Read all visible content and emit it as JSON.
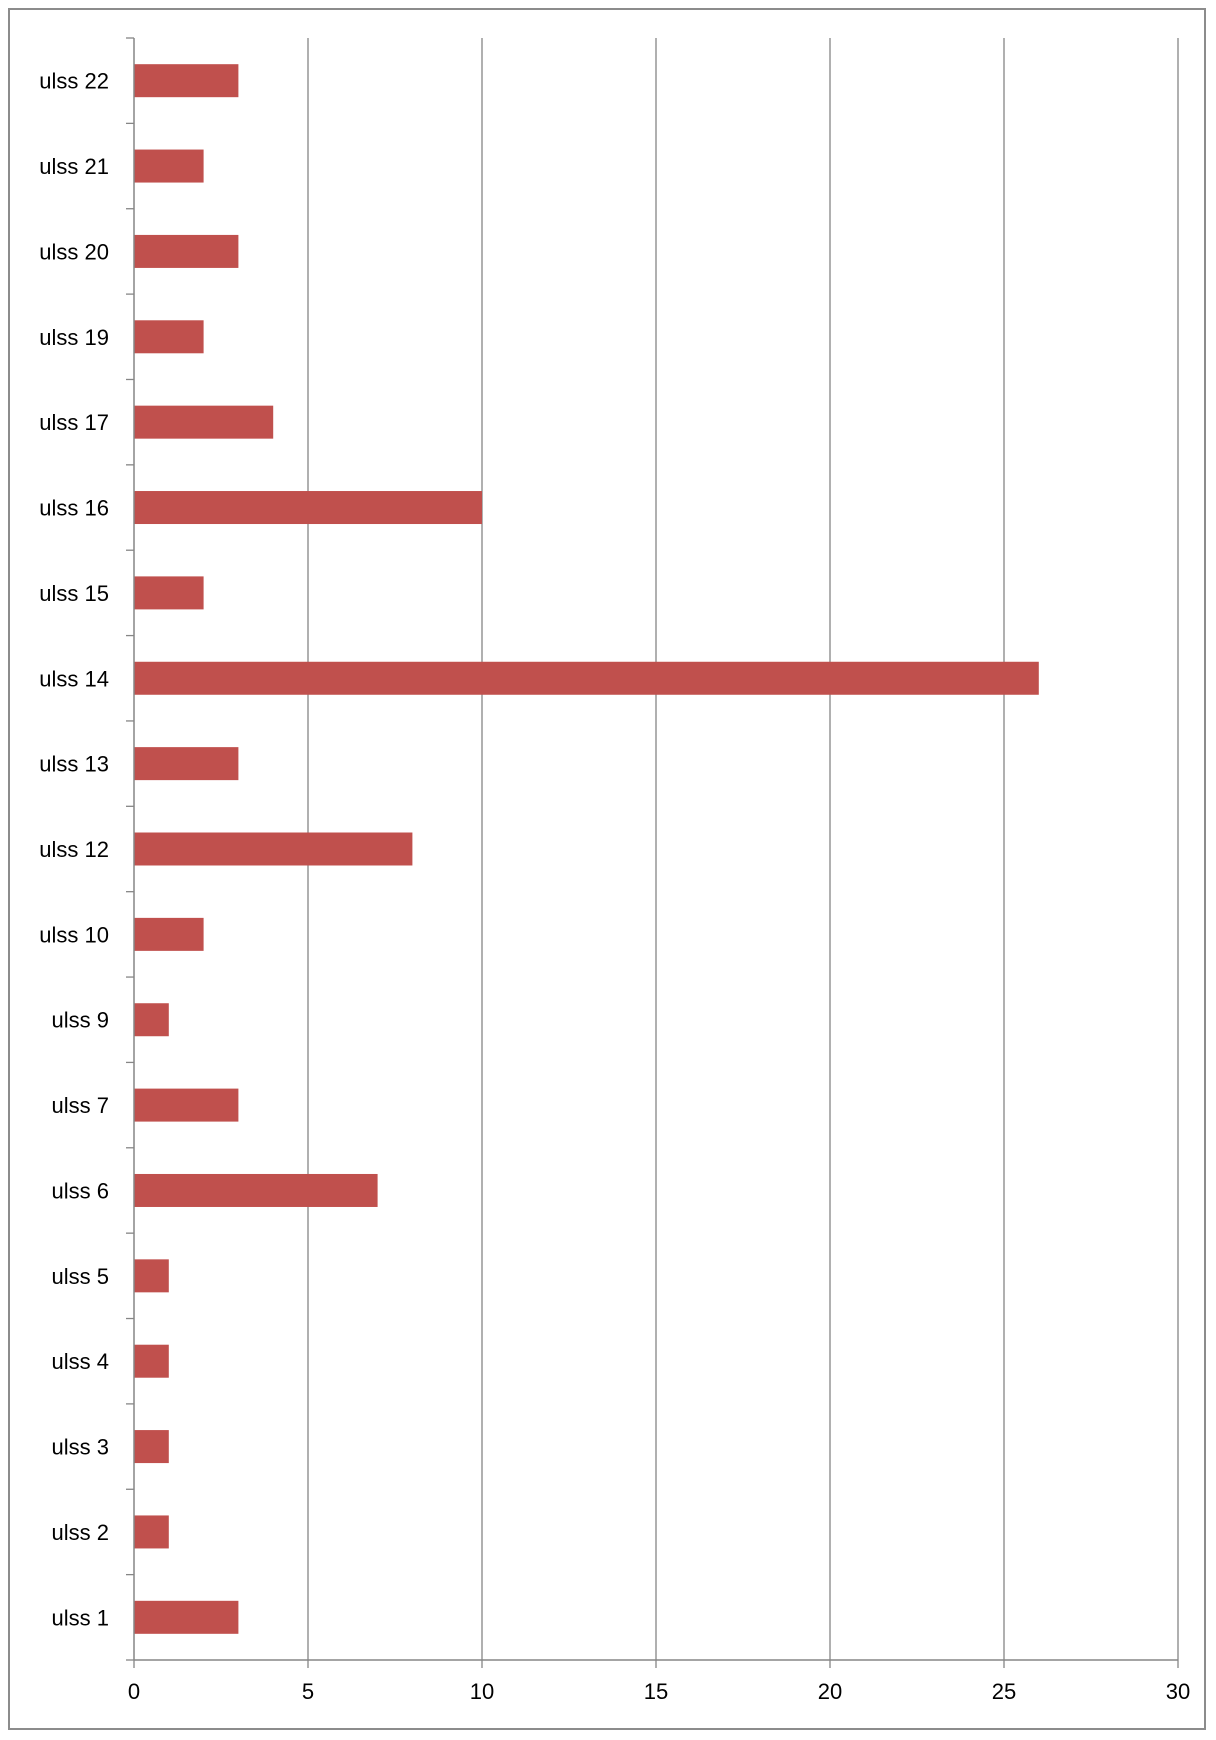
{
  "chart_data": {
    "type": "bar",
    "orientation": "horizontal",
    "title": "",
    "xlabel": "",
    "ylabel": "",
    "categories": [
      "ulss 1",
      "ulss 2",
      "ulss 3",
      "ulss 4",
      "ulss 5",
      "ulss 6",
      "ulss 7",
      "ulss 9",
      "ulss 10",
      "ulss 12",
      "ulss 13",
      "ulss 14",
      "ulss 15",
      "ulss 16",
      "ulss 17",
      "ulss 19",
      "ulss 20",
      "ulss 21",
      "ulss 22"
    ],
    "values": [
      3,
      1,
      1,
      1,
      1,
      7,
      3,
      1,
      2,
      8,
      3,
      26,
      2,
      10,
      4,
      2,
      3,
      2,
      3
    ],
    "xlim": [
      0,
      30
    ],
    "xticks": [
      "0",
      "5",
      "10",
      "15",
      "20",
      "25",
      "30"
    ],
    "grid": "vertical",
    "legend": "none",
    "colors": {
      "bar": "#C0504D",
      "grid": "#868686",
      "axis": "#868686",
      "frame": "#8C8C8C"
    }
  }
}
